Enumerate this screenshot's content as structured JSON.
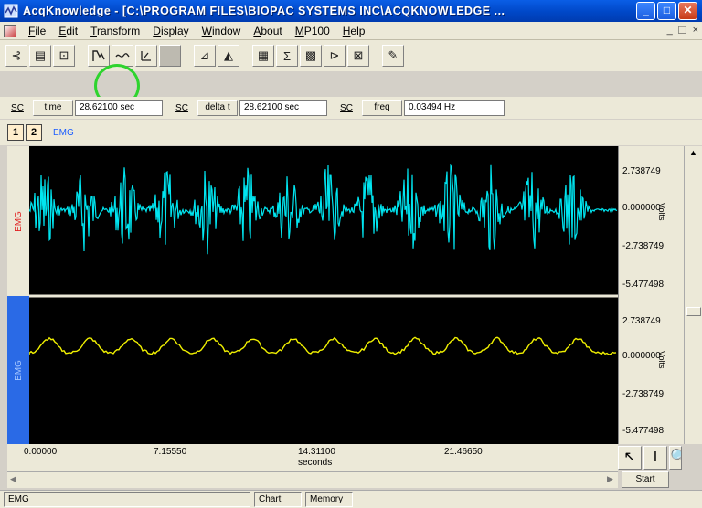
{
  "window": {
    "title": "AcqKnowledge - [C:\\PROGRAM FILES\\BIOPAC SYSTEMS INC\\ACQKNOWLEDGE ...",
    "minimize": "_",
    "maximize": "□",
    "close": "✕"
  },
  "menu": {
    "items": [
      "File",
      "Edit",
      "Transform",
      "Display",
      "Window",
      "About",
      "MP100",
      "Help"
    ],
    "mdi_min": "_",
    "mdi_restore": "❐",
    "mdi_close": "×"
  },
  "toolbar": {
    "buttons": [
      "zoom-back",
      "overlap",
      "compress",
      "autoscale-waveforms",
      "autoscale-horizontal",
      "adjust-baseline",
      "blank",
      "ruler",
      "grid",
      "statistics-sigma",
      "calculation-grid",
      "p-marker",
      "rescale",
      "open-file"
    ],
    "highlighted": "autoscale-waveforms"
  },
  "measurements": [
    {
      "sc": "SC",
      "name": "time",
      "value": "28.62100 sec"
    },
    {
      "sc": "SC",
      "name": "delta t",
      "value": "28.62100 sec"
    },
    {
      "sc": "SC",
      "name": "freq",
      "value": "0.03494 Hz"
    }
  ],
  "channels": {
    "buttons": [
      "1",
      "2"
    ],
    "active_label": "EMG"
  },
  "graph": {
    "channel1_label": "EMG",
    "channel2_label": "EMG",
    "channel1_color": "#00e5f0",
    "channel2_color": "#f0f000",
    "scale1": [
      "2.738749",
      "0.000000",
      "-2.738749",
      "-5.477498"
    ],
    "scale2": [
      "2.738749",
      "0.000000",
      "-2.738749",
      "-5.477498"
    ],
    "unit": "Volts"
  },
  "time_axis": {
    "ticks": [
      "0.00000",
      "7.15550",
      "14.31100",
      "21.46650"
    ],
    "unit": "seconds"
  },
  "tools": {
    "pointer": "↖",
    "ibeam": "I",
    "zoom": "🔍"
  },
  "start_button": "Start",
  "status": {
    "channel": "EMG",
    "chart": "Chart",
    "memory": "Memory"
  }
}
